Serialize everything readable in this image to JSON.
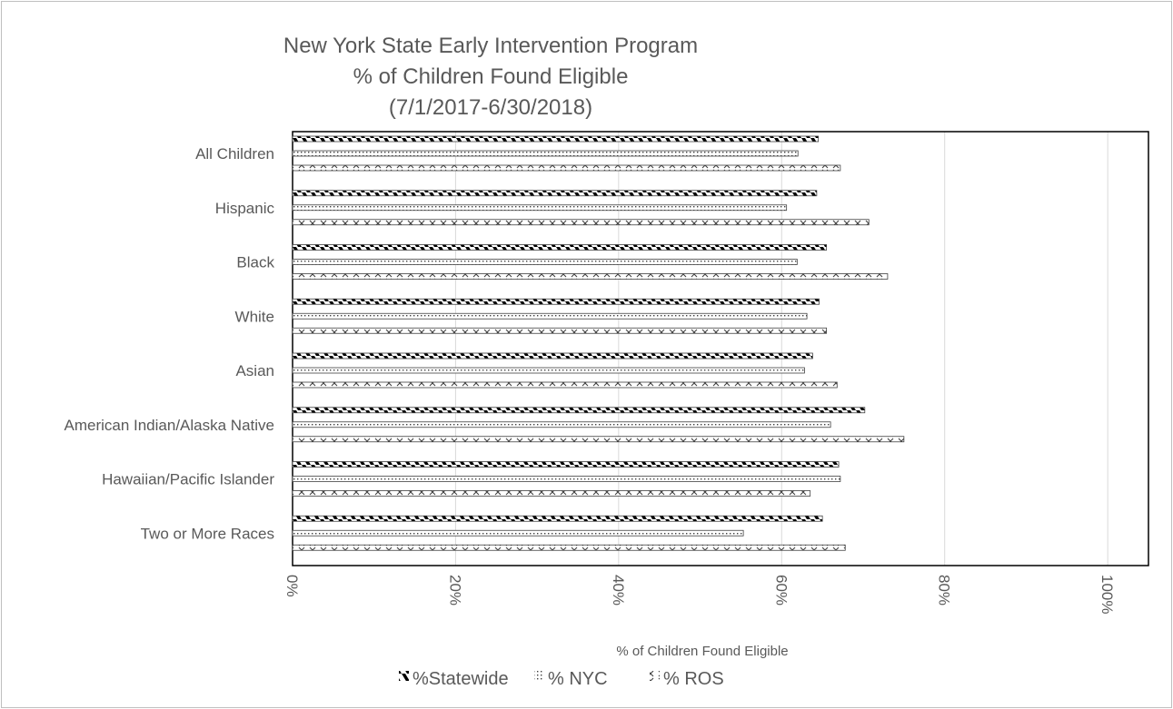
{
  "chart_data": {
    "type": "bar",
    "orientation": "horizontal",
    "title": [
      "New York State Early Intervention Program",
      "% of Children Found Eligible",
      "(7/1/2017-6/30/2018)"
    ],
    "xlabel": "% of Children Found Eligible",
    "ylabel": "",
    "xlim": [
      0,
      105
    ],
    "x_ticks": [
      "0%",
      "20%",
      "40%",
      "60%",
      "80%",
      "100%"
    ],
    "grid": true,
    "legend_position": "bottom",
    "categories": [
      "All Children",
      "Hispanic",
      "Black",
      "White",
      "Asian",
      "American Indian/Alaska Native",
      "Hawaiian/Pacific Islander",
      "Two or More Races"
    ],
    "series": [
      {
        "name": "%Statewide",
        "pattern": "diagonal-stripes",
        "values": [
          64.5,
          64.3,
          65.5,
          64.6,
          63.8,
          70.2,
          67.0,
          65.0
        ]
      },
      {
        "name": "% NYC",
        "pattern": "dots",
        "values": [
          62.0,
          60.6,
          61.9,
          63.1,
          62.8,
          66.0,
          67.2,
          55.3
        ]
      },
      {
        "name": "% ROS",
        "pattern": "crosses",
        "values": [
          67.2,
          70.7,
          73.0,
          65.5,
          66.8,
          75.0,
          63.5,
          67.8
        ]
      }
    ]
  }
}
